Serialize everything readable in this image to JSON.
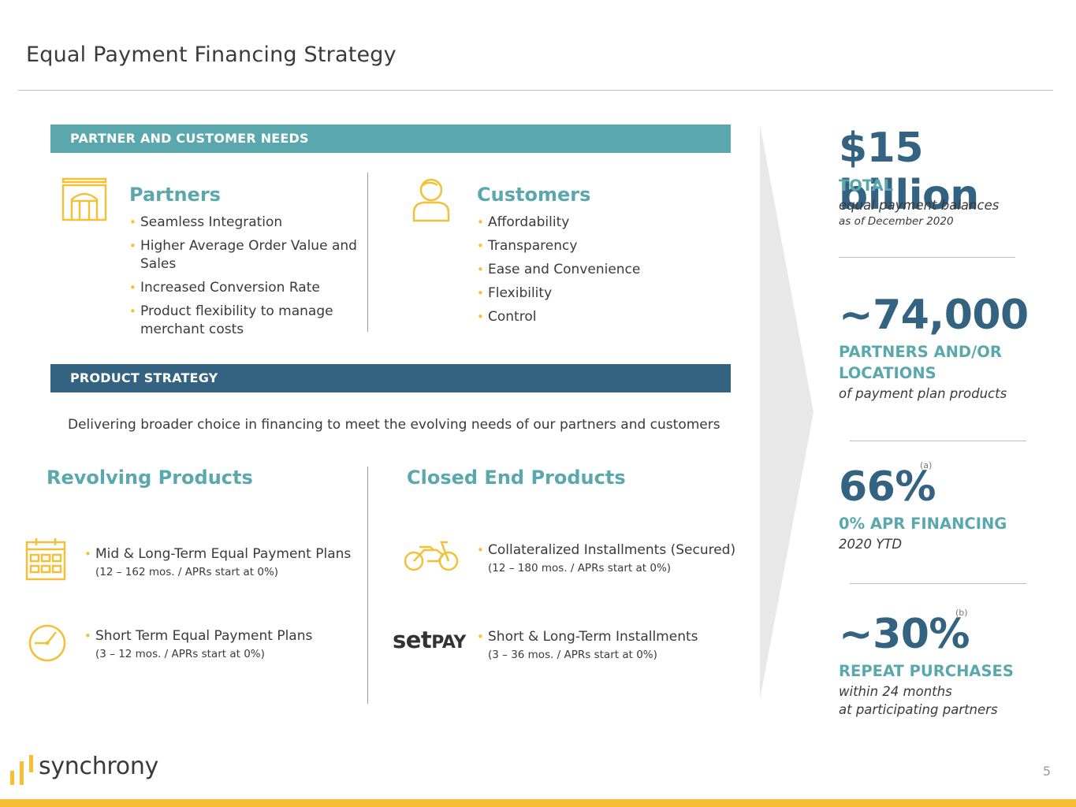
{
  "title": "Equal Payment Financing Strategy",
  "needs_bar": "PARTNER AND CUSTOMER NEEDS",
  "partners": {
    "heading": "Partners",
    "items": [
      "Seamless Integration",
      "Higher Average Order Value and Sales",
      "Increased Conversion Rate",
      "Product flexibility to manage merchant costs"
    ]
  },
  "customers": {
    "heading": "Customers",
    "items": [
      "Affordability",
      "Transparency",
      "Ease and Convenience",
      "Flexibility",
      "Control"
    ]
  },
  "strategy_bar": "PRODUCT STRATEGY",
  "strategy_text": "Delivering broader choice in financing to meet the evolving needs of our partners and customers",
  "revolving": {
    "heading": "Revolving Products",
    "items": [
      {
        "main": "Mid & Long-Term Equal Payment Plans",
        "sub": "(12 – 162 mos. / APRs start at 0%)",
        "icon": "calendar-icon"
      },
      {
        "main": "Short Term Equal Payment Plans",
        "sub": "(3 – 12 mos. / APRs start at 0%)",
        "icon": "clock-icon"
      }
    ]
  },
  "closed_end": {
    "heading": "Closed End Products",
    "items": [
      {
        "main": "Collateralized Installments (Secured)",
        "sub": "(12 – 180 mos. / APRs start at 0%)",
        "icon": "motorcycle-icon"
      },
      {
        "main": "Short & Long-Term Installments",
        "sub": "(3 – 36 mos. / APRs start at 0%)",
        "icon": "setpay-logo"
      }
    ],
    "setpay_text_a": "set",
    "setpay_text_b": "PAY"
  },
  "stats": [
    {
      "value": "$15 billion",
      "label": "TOTAL",
      "desc": "equal payment balances",
      "note": "as of December 2020"
    },
    {
      "value": "~74,000",
      "label_1": "PARTNERS AND/OR",
      "label_2": "LOCATIONS",
      "desc": "of payment plan products"
    },
    {
      "value": "66%",
      "sup": "(a)",
      "label": "0% APR FINANCING",
      "desc": "2020 YTD"
    },
    {
      "value": "~30%",
      "sup": "(b)",
      "label": "REPEAT PURCHASES",
      "desc_1": "within 24 months",
      "desc_2": "at participating partners"
    }
  ],
  "logo": "synchrony",
  "page_number": "5",
  "colors": {
    "teal": "#5aa8ae",
    "navy": "#336381",
    "gold": "#f3c03a"
  }
}
